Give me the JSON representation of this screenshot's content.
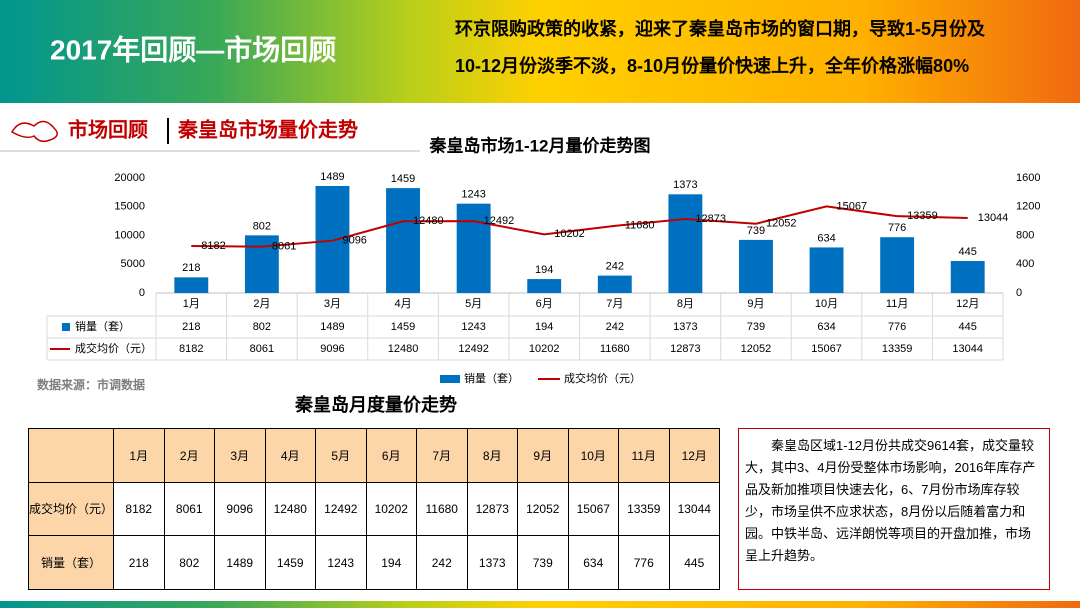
{
  "header": {
    "title": "2017年回顾—市场回顾",
    "summary": [
      "环京限购政策的收紧，迎来了秦皇岛市场的窗口期，导致1-5月份及",
      "10-12月份淡季不淡，8-10月份量价快速上升，全年价格涨幅80%"
    ]
  },
  "section": {
    "label": "市场回顾",
    "title": "秦皇岛市场量价走势"
  },
  "chart_data": {
    "type": "combo",
    "title": "秦皇岛市场1-12月量价走势图",
    "categories": [
      "1月",
      "2月",
      "3月",
      "4月",
      "5月",
      "6月",
      "7月",
      "8月",
      "9月",
      "10月",
      "11月",
      "12月"
    ],
    "series": [
      {
        "name": "销量（套）",
        "type": "bar",
        "axis": "y2",
        "color": "#0070c0",
        "values": [
          218,
          802,
          1489,
          1459,
          1243,
          194,
          242,
          1373,
          739,
          634,
          776,
          445
        ]
      },
      {
        "name": "成交均价（元）",
        "type": "line",
        "color": "#c00000",
        "values": [
          8182,
          8061,
          9096,
          12480,
          12492,
          10202,
          11680,
          12873,
          12052,
          15067,
          13359,
          13044
        ]
      }
    ],
    "ylim": [
      0,
      20000
    ],
    "yticks": [
      0,
      5000,
      10000,
      15000,
      20000
    ],
    "y2lim": [
      0,
      1600
    ],
    "y2ticks": [
      0,
      400,
      800,
      1200,
      1600
    ],
    "legend": "bottom"
  },
  "source": "数据来源：市调数据",
  "table": {
    "title": "秦皇岛月度量价走势",
    "header": [
      "1月",
      "2月",
      "3月",
      "4月",
      "5月",
      "6月",
      "7月",
      "8月",
      "9月",
      "10月",
      "11月",
      "12月"
    ],
    "rows": [
      {
        "label": "成交均价（元）",
        "values": [
          8182,
          8061,
          9096,
          12480,
          12492,
          10202,
          11680,
          12873,
          12052,
          15067,
          13359,
          13044
        ]
      },
      {
        "label": "销量（套）",
        "values": [
          218,
          802,
          1489,
          1459,
          1243,
          194,
          242,
          1373,
          739,
          634,
          776,
          445
        ]
      }
    ]
  },
  "note": "秦皇岛区域1-12月份共成交9614套，成交量较大，其中3、4月份受整体市场影响，2016年库存产品及新加推项目快速去化，6、7月份市场库存较少，市场呈供不应求状态，8月份以后随着富力和园。中铁半岛、远洋朗悦等项目的开盘加推，市场呈上升趋势。"
}
